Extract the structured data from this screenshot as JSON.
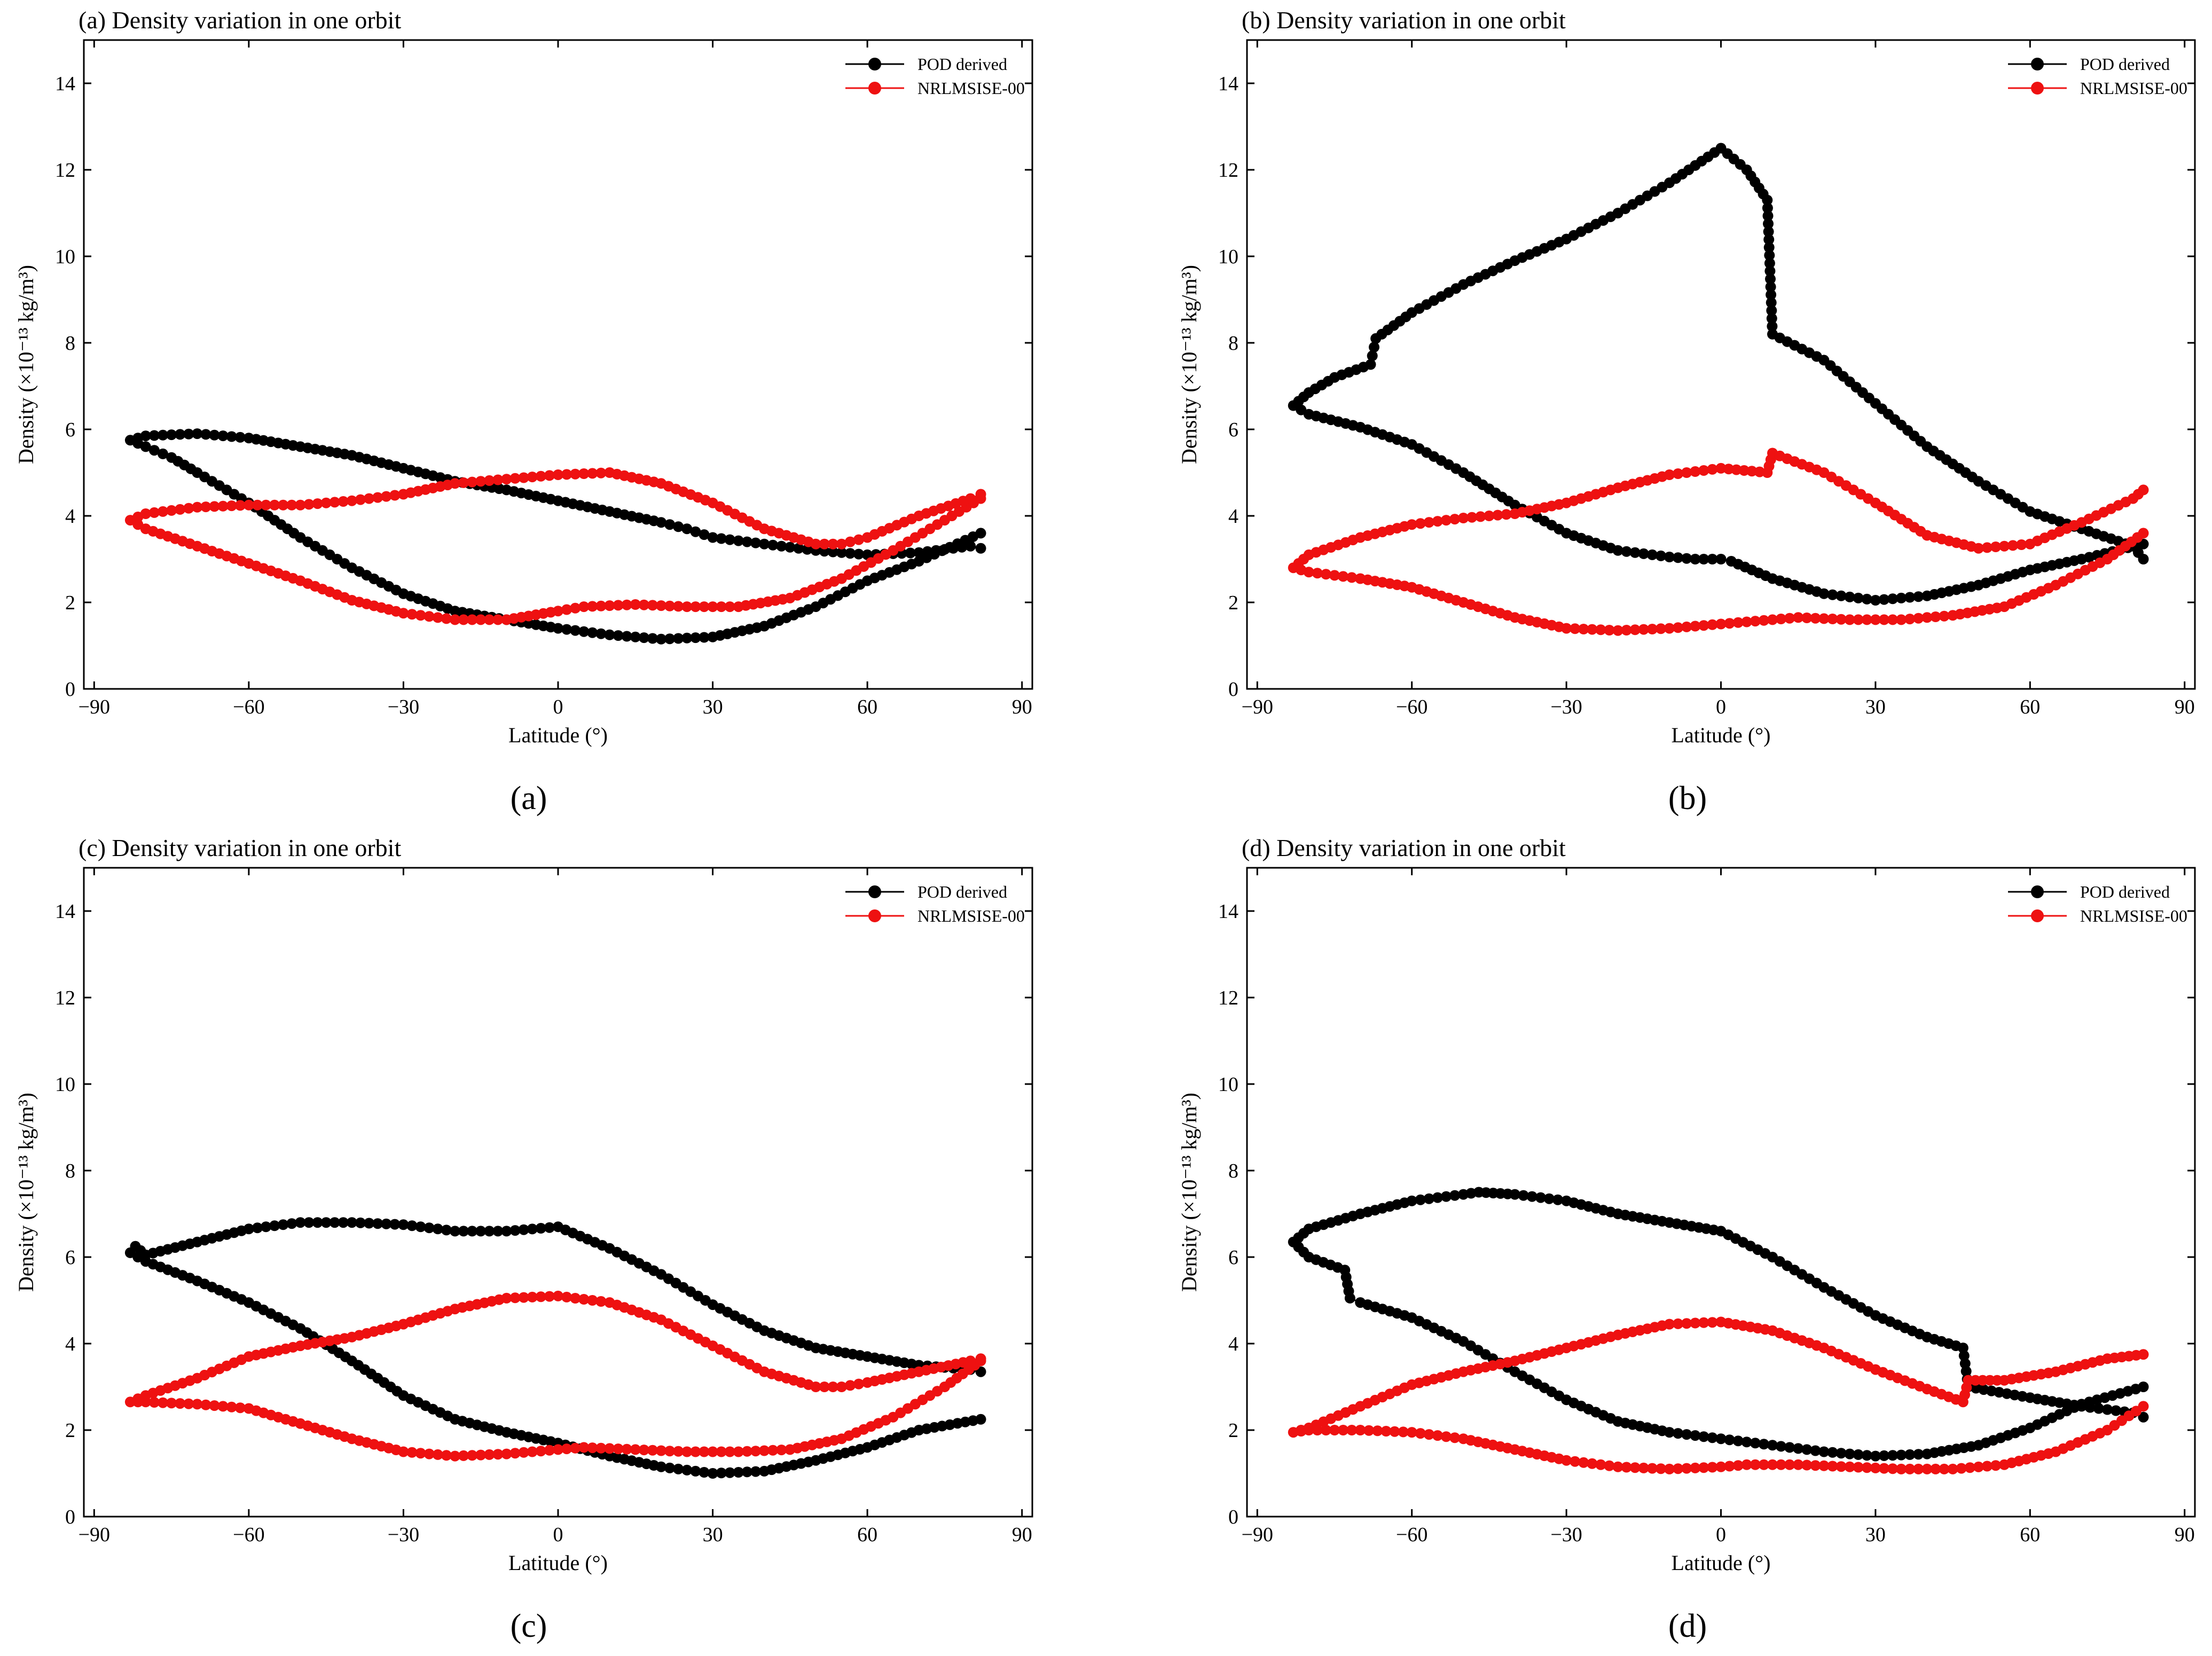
{
  "figure": {
    "panel_captions": [
      "(a)",
      "(b)",
      "(c)",
      "(d)"
    ]
  },
  "colors": {
    "pod": "#000000",
    "nrl": "#ee1111",
    "axis": "#000000",
    "background": "#ffffff"
  },
  "chart_data": [
    {
      "type": "line",
      "title": "(a) Density variation in one orbit",
      "xlabel": "Latitude (°)",
      "ylabel": "Density (×10⁻¹³ kg/m³)",
      "xlim": [
        -92,
        92
      ],
      "ylim": [
        0,
        15
      ],
      "xticks": [
        -90,
        -60,
        -30,
        0,
        30,
        60,
        90
      ],
      "yticks": [
        0,
        2,
        4,
        6,
        8,
        10,
        12,
        14
      ],
      "xtick_labels": [
        "−90",
        "−60",
        "−30",
        "0",
        "30",
        "60",
        "90"
      ],
      "ytick_labels": [
        "0",
        "2",
        "4",
        "6",
        "8",
        "10",
        "12",
        "14"
      ],
      "legend": "top-right",
      "grid": false,
      "caption": "(a)",
      "series": [
        {
          "name": "POD derived",
          "color": "#000000",
          "x": [
            82,
            70,
            60,
            50,
            40,
            30,
            20,
            10,
            0,
            -10,
            -20,
            -30,
            -40,
            -50,
            -60,
            -70,
            -75,
            -80,
            -83,
            -80,
            -70,
            -60,
            -50,
            -40,
            -30,
            -20,
            -10,
            0,
            10,
            20,
            25,
            30,
            40,
            50,
            60,
            70,
            80,
            82
          ],
          "y": [
            3.6,
            2.95,
            2.5,
            1.9,
            1.45,
            1.2,
            1.15,
            1.25,
            1.4,
            1.6,
            1.8,
            2.2,
            2.8,
            3.5,
            4.3,
            5.0,
            5.35,
            5.6,
            5.75,
            5.85,
            5.9,
            5.8,
            5.6,
            5.4,
            5.1,
            4.8,
            4.6,
            4.35,
            4.1,
            3.85,
            3.7,
            3.5,
            3.35,
            3.2,
            3.1,
            3.15,
            3.3,
            3.25
          ]
        },
        {
          "name": "NRLMSISE-00",
          "color": "#ee1111",
          "x": [
            82,
            75,
            65,
            55,
            45,
            35,
            25,
            15,
            5,
            0,
            -10,
            -20,
            -30,
            -40,
            -50,
            -60,
            -70,
            -80,
            -83,
            -80,
            -70,
            -60,
            -50,
            -40,
            -30,
            -20,
            -10,
            0,
            10,
            20,
            30,
            40,
            50,
            55,
            60,
            70,
            80,
            82
          ],
          "y": [
            4.4,
            3.9,
            3.2,
            2.55,
            2.1,
            1.9,
            1.9,
            1.95,
            1.9,
            1.8,
            1.6,
            1.6,
            1.75,
            2.05,
            2.5,
            2.9,
            3.3,
            3.7,
            3.9,
            4.05,
            4.2,
            4.25,
            4.25,
            4.35,
            4.5,
            4.75,
            4.85,
            4.95,
            5.0,
            4.75,
            4.3,
            3.7,
            3.35,
            3.35,
            3.5,
            4.0,
            4.4,
            4.5
          ]
        }
      ]
    },
    {
      "type": "line",
      "title": "(b) Density variation in one orbit",
      "xlabel": "Latitude (°)",
      "ylabel": "Density (×10⁻¹³ kg/m³)",
      "xlim": [
        -92,
        92
      ],
      "ylim": [
        0,
        15
      ],
      "xticks": [
        -90,
        -60,
        -30,
        0,
        30,
        60,
        90
      ],
      "yticks": [
        0,
        2,
        4,
        6,
        8,
        10,
        12,
        14
      ],
      "xtick_labels": [
        "−90",
        "−60",
        "−30",
        "0",
        "30",
        "60",
        "90"
      ],
      "ytick_labels": [
        "0",
        "2",
        "4",
        "6",
        "8",
        "10",
        "12",
        "14"
      ],
      "legend": "top-right",
      "grid": false,
      "caption": "(b)",
      "series": [
        {
          "name": "POD derived",
          "color": "#000000",
          "x": [
            82,
            70,
            60,
            50,
            40,
            30,
            20,
            10,
            2,
            0,
            -5,
            -10,
            -20,
            -30,
            -40,
            -50,
            -60,
            -70,
            -80,
            -83,
            -80,
            -75,
            -68,
            -67,
            -60,
            -50,
            -40,
            -30,
            -20,
            -10,
            0,
            5,
            9,
            10,
            20,
            30,
            40,
            50,
            60,
            70,
            80,
            82
          ],
          "y": [
            3.35,
            3.0,
            2.75,
            2.4,
            2.15,
            2.05,
            2.2,
            2.55,
            2.95,
            3.0,
            3.0,
            3.05,
            3.2,
            3.6,
            4.25,
            5.0,
            5.65,
            6.05,
            6.35,
            6.55,
            6.85,
            7.2,
            7.5,
            8.1,
            8.7,
            9.35,
            9.9,
            10.4,
            11.0,
            11.7,
            12.5,
            12.0,
            11.3,
            8.2,
            7.6,
            6.6,
            5.6,
            4.8,
            4.1,
            3.7,
            3.3,
            3.0
          ]
        },
        {
          "name": "NRLMSISE-00",
          "color": "#ee1111",
          "x": [
            82,
            75,
            65,
            55,
            45,
            35,
            25,
            15,
            10,
            0,
            -10,
            -20,
            -30,
            -40,
            -50,
            -60,
            -70,
            -80,
            -83,
            -80,
            -70,
            -60,
            -50,
            -40,
            -30,
            -20,
            -10,
            0,
            9,
            10,
            20,
            30,
            40,
            50,
            60,
            70,
            80,
            82
          ],
          "y": [
            3.6,
            3.0,
            2.4,
            1.9,
            1.7,
            1.6,
            1.6,
            1.65,
            1.6,
            1.5,
            1.4,
            1.35,
            1.4,
            1.65,
            2.0,
            2.35,
            2.55,
            2.7,
            2.8,
            3.1,
            3.5,
            3.8,
            3.95,
            4.05,
            4.3,
            4.65,
            4.95,
            5.1,
            5.0,
            5.45,
            5.0,
            4.3,
            3.55,
            3.25,
            3.35,
            3.85,
            4.4,
            4.6
          ]
        }
      ]
    },
    {
      "type": "line",
      "title": "(c) Density variation in one orbit",
      "xlabel": "Latitude (°)",
      "ylabel": "Density (×10⁻¹³ kg/m³)",
      "xlim": [
        -92,
        92
      ],
      "ylim": [
        0,
        15
      ],
      "xticks": [
        -90,
        -60,
        -30,
        0,
        30,
        60,
        90
      ],
      "yticks": [
        0,
        2,
        4,
        6,
        8,
        10,
        12,
        14
      ],
      "xtick_labels": [
        "−90",
        "−60",
        "−30",
        "0",
        "30",
        "60",
        "90"
      ],
      "ytick_labels": [
        "0",
        "2",
        "4",
        "6",
        "8",
        "10",
        "12",
        "14"
      ],
      "legend": "top-right",
      "grid": false,
      "caption": "(c)",
      "series": [
        {
          "name": "POD derived",
          "color": "#000000",
          "x": [
            82,
            70,
            60,
            50,
            40,
            30,
            20,
            10,
            0,
            -10,
            -20,
            -30,
            -40,
            -50,
            -60,
            -70,
            -80,
            -83,
            -82,
            -80,
            -70,
            -60,
            -50,
            -40,
            -30,
            -20,
            -10,
            0,
            10,
            20,
            30,
            40,
            50,
            60,
            70,
            80,
            82
          ],
          "y": [
            2.25,
            2.0,
            1.6,
            1.3,
            1.05,
            1.0,
            1.15,
            1.4,
            1.7,
            1.95,
            2.25,
            2.8,
            3.6,
            4.35,
            4.95,
            5.45,
            5.9,
            6.1,
            6.25,
            6.05,
            6.35,
            6.65,
            6.8,
            6.8,
            6.75,
            6.6,
            6.6,
            6.7,
            6.2,
            5.6,
            4.9,
            4.3,
            3.9,
            3.7,
            3.5,
            3.4,
            3.35
          ]
        },
        {
          "name": "NRLMSISE-00",
          "color": "#ee1111",
          "x": [
            82,
            75,
            65,
            55,
            45,
            35,
            25,
            15,
            5,
            0,
            -10,
            -20,
            -30,
            -40,
            -50,
            -60,
            -70,
            -80,
            -83,
            -80,
            -70,
            -60,
            -50,
            -40,
            -30,
            -20,
            -10,
            0,
            10,
            20,
            30,
            40,
            50,
            55,
            60,
            70,
            80,
            82
          ],
          "y": [
            3.6,
            3.0,
            2.3,
            1.8,
            1.55,
            1.5,
            1.5,
            1.55,
            1.6,
            1.55,
            1.45,
            1.4,
            1.5,
            1.8,
            2.15,
            2.5,
            2.6,
            2.65,
            2.65,
            2.8,
            3.2,
            3.7,
            3.95,
            4.15,
            4.45,
            4.8,
            5.05,
            5.1,
            4.95,
            4.55,
            3.95,
            3.35,
            3.0,
            3.0,
            3.1,
            3.35,
            3.6,
            3.65
          ]
        }
      ]
    },
    {
      "type": "line",
      "title": "(d) Density variation in one orbit",
      "xlabel": "Latitude (°)",
      "ylabel": "Density (×10⁻¹³ kg/m³)",
      "xlim": [
        -92,
        92
      ],
      "ylim": [
        0,
        15
      ],
      "xticks": [
        -90,
        -60,
        -30,
        0,
        30,
        60,
        90
      ],
      "yticks": [
        0,
        2,
        4,
        6,
        8,
        10,
        12,
        14
      ],
      "xtick_labels": [
        "−90",
        "−60",
        "−30",
        "0",
        "30",
        "60",
        "90"
      ],
      "ytick_labels": [
        "0",
        "2",
        "4",
        "6",
        "8",
        "10",
        "12",
        "14"
      ],
      "legend": "top-right",
      "grid": false,
      "caption": "(d)",
      "series": [
        {
          "name": "POD derived",
          "color": "#000000",
          "x": [
            82,
            70,
            60,
            50,
            40,
            30,
            20,
            10,
            0,
            -10,
            -20,
            -30,
            -40,
            -50,
            -60,
            -70,
            -72,
            -73,
            -80,
            -83,
            -80,
            -70,
            -60,
            -50,
            -47,
            -40,
            -30,
            -20,
            -10,
            0,
            10,
            20,
            30,
            40,
            47,
            48,
            60,
            70,
            80,
            82
          ],
          "y": [
            3.0,
            2.6,
            2.05,
            1.65,
            1.45,
            1.4,
            1.5,
            1.65,
            1.8,
            1.95,
            2.2,
            2.7,
            3.35,
            4.05,
            4.6,
            4.95,
            5.05,
            5.7,
            6.0,
            6.35,
            6.65,
            7.0,
            7.3,
            7.45,
            7.5,
            7.45,
            7.3,
            7.0,
            6.8,
            6.6,
            6.0,
            5.3,
            4.65,
            4.15,
            3.9,
            3.0,
            2.75,
            2.55,
            2.4,
            2.3
          ]
        },
        {
          "name": "NRLMSISE-00",
          "color": "#ee1111",
          "x": [
            82,
            75,
            65,
            55,
            45,
            35,
            25,
            15,
            5,
            0,
            -10,
            -20,
            -30,
            -40,
            -50,
            -60,
            -70,
            -80,
            -83,
            -80,
            -70,
            -60,
            -50,
            -40,
            -30,
            -20,
            -10,
            0,
            10,
            20,
            30,
            40,
            47,
            48,
            55,
            65,
            75,
            82
          ],
          "y": [
            2.55,
            2.0,
            1.5,
            1.2,
            1.1,
            1.1,
            1.15,
            1.2,
            1.2,
            1.15,
            1.1,
            1.15,
            1.3,
            1.55,
            1.8,
            1.95,
            2.0,
            2.0,
            1.95,
            2.05,
            2.55,
            3.05,
            3.35,
            3.6,
            3.9,
            4.2,
            4.45,
            4.5,
            4.3,
            3.9,
            3.4,
            2.95,
            2.65,
            3.15,
            3.15,
            3.35,
            3.65,
            3.75
          ]
        }
      ]
    }
  ]
}
